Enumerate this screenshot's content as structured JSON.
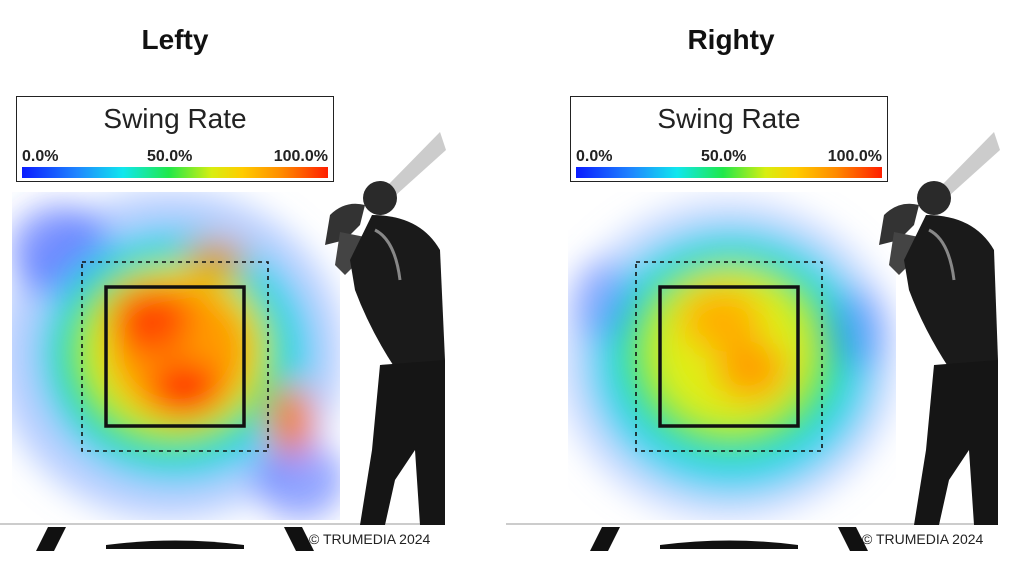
{
  "copyright": "© TRUMEDIA 2024",
  "colors": {
    "zone": "#111111",
    "low": "#1f3cff",
    "mid": "#22e84a",
    "high": "#ff2200"
  },
  "chart_data": [
    {
      "type": "heatmap",
      "title": "Lefty",
      "metric": "Swing Rate",
      "colorbar": {
        "min_label": "0.0%",
        "mid_label": "50.0%",
        "max_label": "100.0%",
        "range": [
          0,
          100
        ]
      },
      "peak_regions": [
        {
          "region": "upper-left heart",
          "swing_rate_pct": 85
        },
        {
          "region": "center heart",
          "swing_rate_pct": 88
        },
        {
          "region": "lower-center heart",
          "swing_rate_pct": 92
        },
        {
          "region": "right edge",
          "swing_rate_pct": 70
        },
        {
          "region": "shadow ring",
          "swing_rate_pct": 45
        },
        {
          "region": "chase area",
          "swing_rate_pct": 10
        }
      ]
    },
    {
      "type": "heatmap",
      "title": "Righty",
      "metric": "Swing Rate",
      "colorbar": {
        "min_label": "0.0%",
        "mid_label": "50.0%",
        "max_label": "100.0%",
        "range": [
          0,
          100
        ]
      },
      "peak_regions": [
        {
          "region": "upper-center heart",
          "swing_rate_pct": 70
        },
        {
          "region": "center heart",
          "swing_rate_pct": 75
        },
        {
          "region": "lower heart",
          "swing_rate_pct": 66
        },
        {
          "region": "shadow ring",
          "swing_rate_pct": 40
        },
        {
          "region": "chase area",
          "swing_rate_pct": 8
        }
      ]
    }
  ]
}
